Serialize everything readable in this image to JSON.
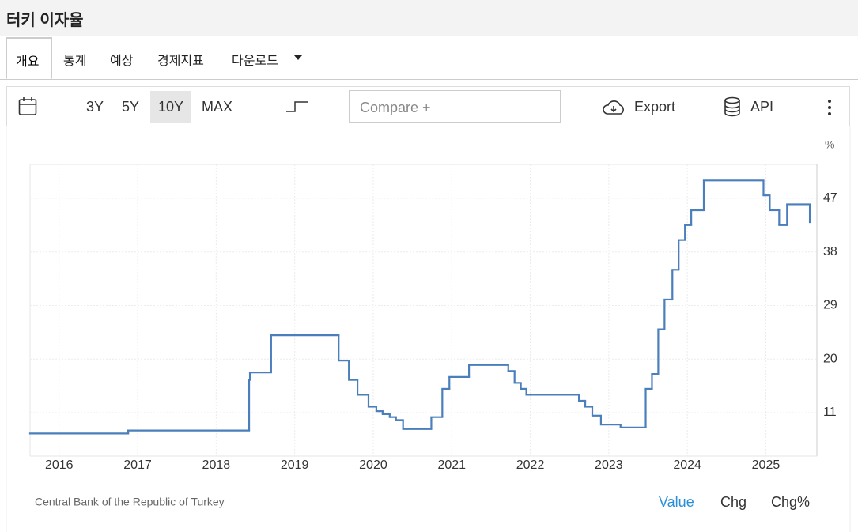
{
  "page": {
    "title": "터키 이자율",
    "tabs": [
      "개요",
      "통계",
      "예상",
      "경제지표",
      "다운로드"
    ],
    "ranges": [
      "3Y",
      "5Y",
      "10Y",
      "MAX"
    ],
    "compare": "Compare +",
    "export": "Export",
    "api": "API",
    "source": "Central Bank of the Republic of Turkey",
    "views": [
      "Value",
      "Chg",
      "Chg%"
    ]
  },
  "chart_data": {
    "type": "step",
    "unit": "%",
    "x": [
      2015.63,
      2016.88,
      2018.42,
      2018.43,
      2018.7,
      2019.56,
      2019.69,
      2019.8,
      2019.94,
      2020.04,
      2020.12,
      2020.21,
      2020.29,
      2020.38,
      2020.74,
      2020.88,
      2020.97,
      2021.22,
      2021.72,
      2021.8,
      2021.88,
      2021.95,
      2022.62,
      2022.7,
      2022.79,
      2022.9,
      2023.15,
      2023.47,
      2023.55,
      2023.63,
      2023.71,
      2023.81,
      2023.89,
      2023.97,
      2024.05,
      2024.21,
      2024.97,
      2025.05,
      2025.17,
      2025.27,
      2025.56
    ],
    "series": [
      {
        "name": "Value",
        "color": "#4a7fbc",
        "values": [
          7.5,
          8,
          16.5,
          17.75,
          24,
          19.75,
          16.5,
          14,
          12,
          11.25,
          10.75,
          10.25,
          9.75,
          8.25,
          10.25,
          15,
          17,
          19,
          18,
          16,
          15,
          14,
          13,
          12,
          10.5,
          9,
          8.5,
          15,
          17.5,
          25,
          30,
          35,
          40,
          42.5,
          45,
          50,
          47.5,
          45,
          42.5,
          46,
          43
        ]
      }
    ],
    "xlim": [
      2015.63,
      2025.65
    ],
    "xticks": [
      2016,
      2017,
      2018,
      2019,
      2020,
      2021,
      2022,
      2023,
      2024,
      2025
    ],
    "ylim": [
      3.7,
      52.7
    ],
    "yticks": [
      11,
      20,
      29,
      38,
      47
    ],
    "grid": true
  }
}
